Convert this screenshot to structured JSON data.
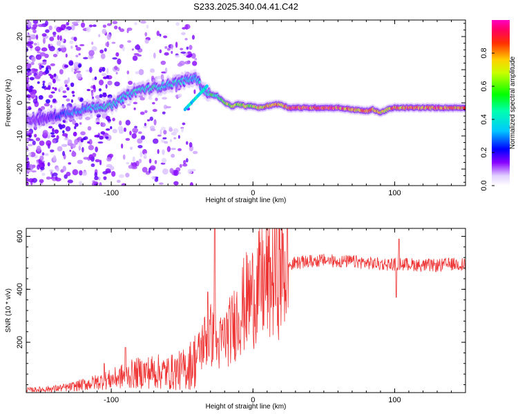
{
  "figure_title": "S233.2025.340.04.41.C42",
  "chart_data": [
    {
      "type": "heatmap",
      "title": "S233.2025.340.04.41.C42",
      "xlabel": "Height of straight line (km)",
      "ylabel": "Frequency (Hz)",
      "xlim": [
        -160,
        150
      ],
      "ylim": [
        -25,
        25
      ],
      "xticks": [
        -100,
        0,
        100
      ],
      "yticks": [
        -20,
        -10,
        0,
        10,
        20
      ],
      "colorbar": {
        "label": "Normalized spectral amplitude",
        "range": [
          0,
          1
        ],
        "ticks": [
          0.0,
          0.2,
          0.4,
          0.6,
          0.8
        ]
      },
      "ridge": {
        "x": [
          -160,
          -150,
          -140,
          -130,
          -120,
          -110,
          -100,
          -90,
          -80,
          -70,
          -60,
          -50,
          -40,
          -35,
          -30,
          -25,
          -20,
          -15,
          -10,
          -5,
          0,
          5,
          10,
          15,
          20,
          25,
          30,
          40,
          50,
          60,
          70,
          80,
          85,
          90,
          95,
          100,
          110,
          120,
          130,
          140,
          150
        ],
        "freq_hz": [
          -5,
          -5,
          -4,
          -3,
          -2,
          -1,
          -1,
          2,
          4,
          4.5,
          5.5,
          6.5,
          7.5,
          4,
          2.5,
          2,
          0,
          -1,
          -0.5,
          -1,
          -1,
          -1.5,
          -1,
          -0.5,
          -0.5,
          -1.5,
          -1.5,
          -1.5,
          -1.5,
          -1.5,
          -2,
          -2.5,
          -2,
          -3,
          -2,
          -1.5,
          -1.5,
          -1.5,
          -1.5,
          -1.5,
          -1.5
        ],
        "amplitude": [
          0.1,
          0.15,
          0.2,
          0.3,
          0.35,
          0.4,
          0.45,
          0.4,
          0.45,
          0.45,
          0.4,
          0.4,
          0.4,
          0.35,
          0.55,
          0.45,
          0.7,
          0.65,
          0.7,
          0.75,
          0.7,
          0.75,
          0.85,
          0.85,
          0.85,
          0.9,
          0.95,
          0.95,
          0.95,
          0.9,
          0.85,
          0.85,
          0.85,
          0.75,
          0.8,
          0.85,
          0.9,
          0.9,
          0.9,
          0.85,
          0.8
        ]
      }
    },
    {
      "type": "line",
      "xlabel": "Height of straight line (km)",
      "ylabel": "SNR (10 * v/v)",
      "xlim": [
        -160,
        150
      ],
      "ylim": [
        10,
        630
      ],
      "xticks": [
        -100,
        0,
        100
      ],
      "yticks": [
        200,
        400,
        600
      ],
      "line_color": "#ee3333",
      "series": [
        {
          "name": "SNR",
          "x": [
            -160,
            -150,
            -140,
            -130,
            -120,
            -110,
            -100,
            -90,
            -80,
            -70,
            -60,
            -50,
            -45,
            -40,
            -35,
            -30,
            -25,
            -20,
            -15,
            -10,
            -5,
            0,
            5,
            10,
            15,
            20,
            25,
            30,
            40,
            50,
            60,
            70,
            80,
            90,
            100,
            110,
            120,
            130,
            140,
            150
          ],
          "values": [
            20,
            22,
            25,
            30,
            40,
            50,
            60,
            75,
            85,
            90,
            85,
            95,
            110,
            140,
            200,
            230,
            180,
            220,
            250,
            310,
            350,
            380,
            410,
            430,
            450,
            470,
            490,
            500,
            505,
            510,
            505,
            505,
            500,
            495,
            495,
            495,
            490,
            490,
            495,
            495
          ]
        }
      ],
      "spikes": [
        {
          "x": -27,
          "value": 630
        },
        {
          "x": -32,
          "value": 390
        },
        {
          "x": -90,
          "value": 180
        },
        {
          "x": -105,
          "value": 120
        },
        {
          "x": 101,
          "value": 370
        },
        {
          "x": 103,
          "value": 590
        }
      ]
    }
  ]
}
